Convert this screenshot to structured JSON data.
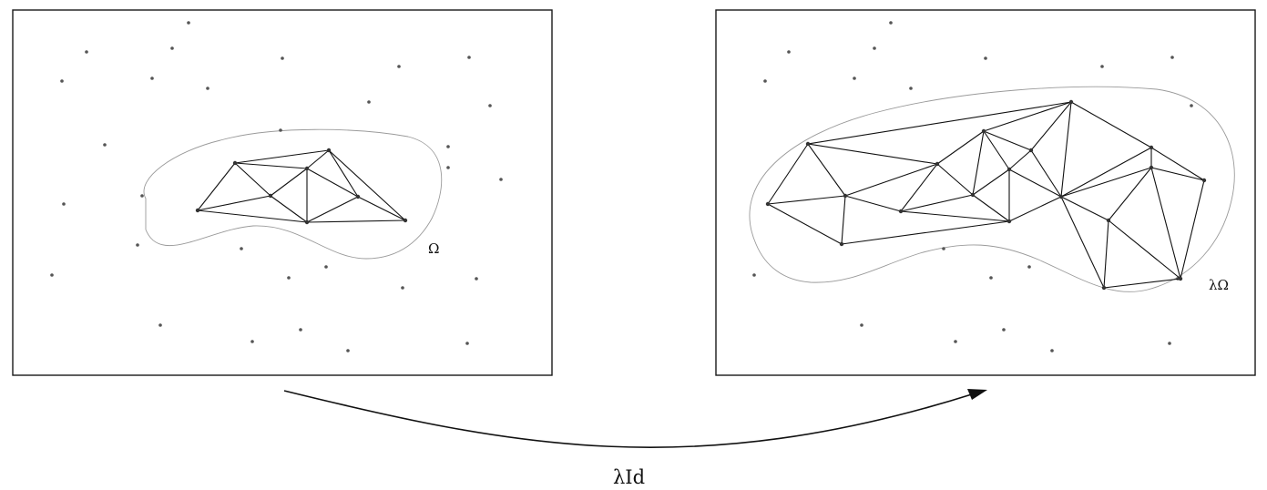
{
  "figure": {
    "left_panel": {
      "region_label": "Ω"
    },
    "right_panel": {
      "region_label": "λΩ"
    },
    "map_label": "λId"
  },
  "colors": {
    "line": "#111111",
    "region_outline": "#9a9a9a",
    "point": "#555555"
  }
}
